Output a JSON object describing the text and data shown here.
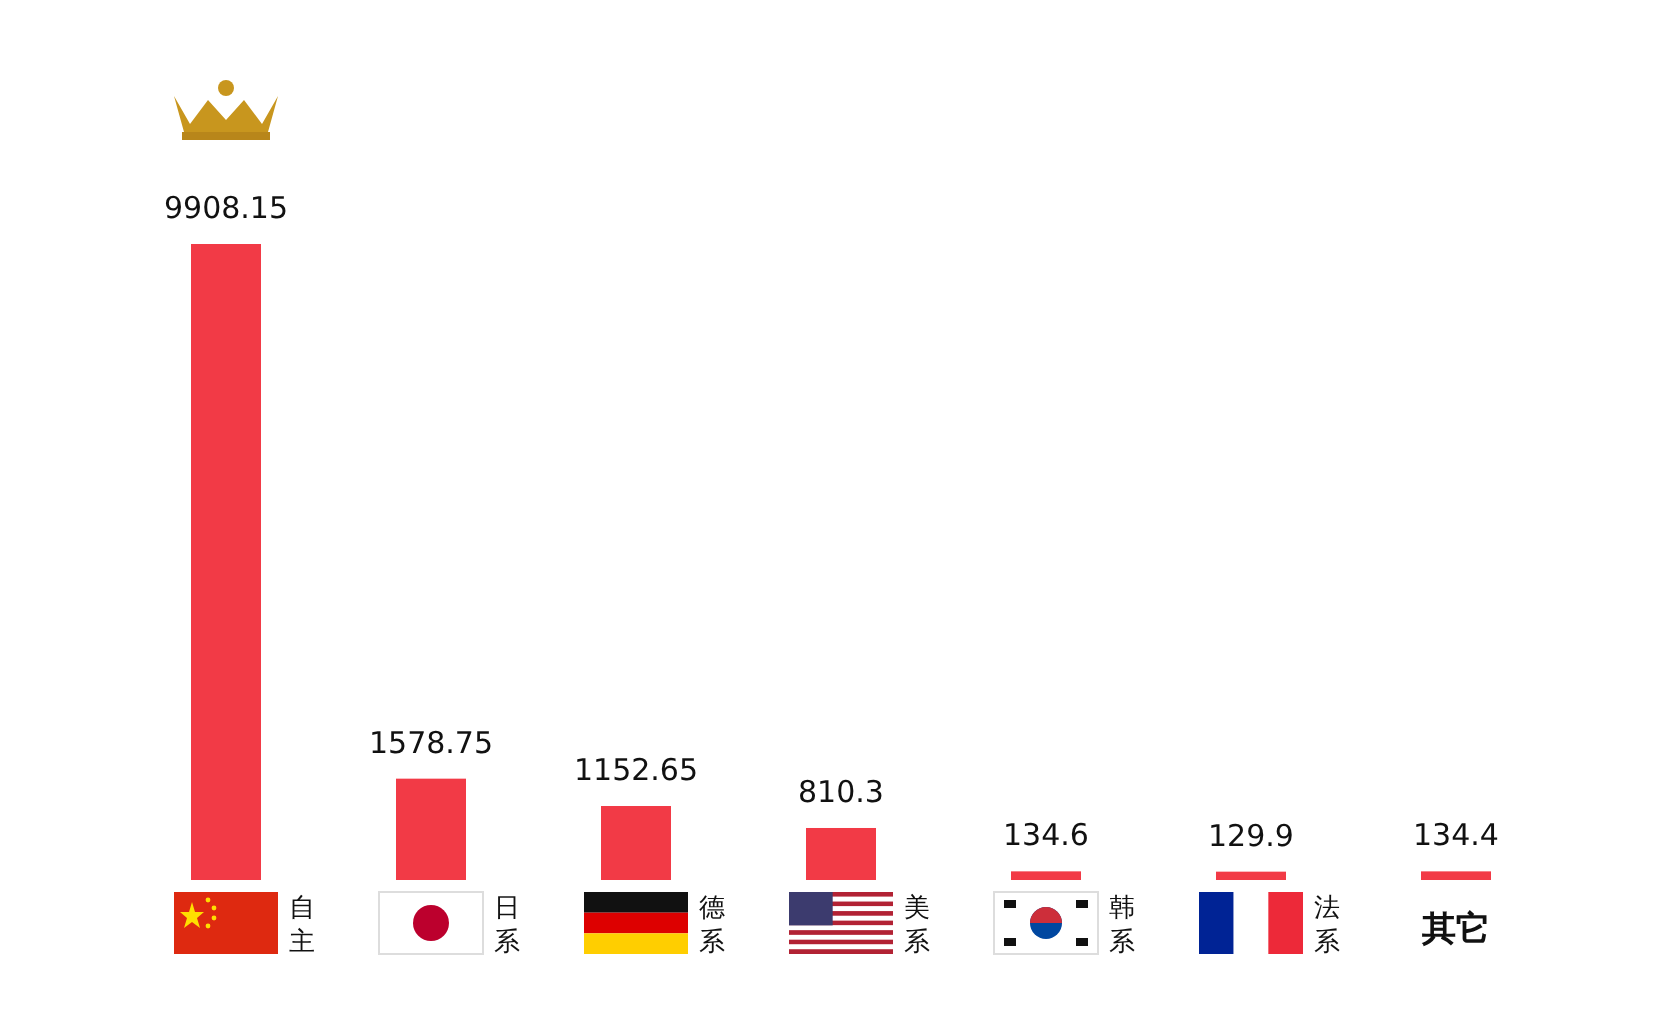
{
  "chart_data": {
    "type": "bar",
    "categories": [
      "自主",
      "日系",
      "德系",
      "美系",
      "韩系",
      "法系",
      "其它"
    ],
    "values": [
      9908.15,
      1578.75,
      1152.65,
      810.3,
      134.6,
      129.9,
      134.4
    ],
    "color": "#f23a46",
    "data_labels": true
  }
}
